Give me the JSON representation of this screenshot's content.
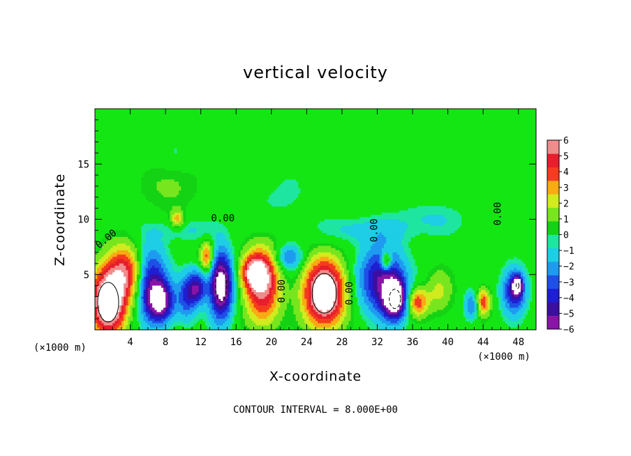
{
  "chart_data": {
    "type": "heatmap",
    "title": "vertical velocity",
    "xlabel": "X-coordinate",
    "ylabel": "Z-coordinate",
    "x_unit": "(×1000 m)",
    "x_unit_right": "(×1000 m)",
    "xlim": [
      0,
      50
    ],
    "ylim": [
      0,
      20
    ],
    "x_ticks": [
      4,
      8,
      12,
      16,
      20,
      24,
      28,
      32,
      36,
      40,
      44,
      48
    ],
    "y_ticks": [
      5,
      10,
      15
    ],
    "contour_note": "CONTOUR INTERVAL = 8.000E+00",
    "contour_labels": [
      "0.00",
      "0.00",
      "0.00",
      "0.00",
      "0.00",
      "0.00"
    ],
    "colorbar": {
      "ticks": [
        "6",
        "5",
        "4",
        "3",
        "2",
        "1",
        "0",
        "−1",
        "−2",
        "−3",
        "−4",
        "−5",
        "−6"
      ],
      "colors": [
        "#8a14a8",
        "#3b0fa0",
        "#1e1ed2",
        "#1e50e6",
        "#1e9bf0",
        "#1ecde6",
        "#1ee6a0",
        "#14d214",
        "#78e61e",
        "#d2eb1e",
        "#faaa14",
        "#f53c1e",
        "#e61e2d",
        "#f08c8c"
      ]
    },
    "background_color": "#14e614",
    "features": [
      {
        "x": 1.5,
        "z": 2.5,
        "v": 9,
        "rx": 2.0,
        "rz": 3.0
      },
      {
        "x": 3.5,
        "z": 5.2,
        "v": 5,
        "rx": 2.0,
        "rz": 2.5
      },
      {
        "x": 6.3,
        "z": 4.3,
        "v": -5,
        "rx": 1.8,
        "rz": 3.2
      },
      {
        "x": 7.5,
        "z": 2.5,
        "v": -6,
        "rx": 1.5,
        "rz": 1.8
      },
      {
        "x": 9.3,
        "z": 10.0,
        "v": 3,
        "rx": 0.7,
        "rz": 0.8
      },
      {
        "x": 10.4,
        "z": 3.0,
        "v": -3.5,
        "rx": 1.0,
        "rz": 2.0
      },
      {
        "x": 12.7,
        "z": 6.6,
        "v": 4.5,
        "rx": 0.8,
        "rz": 1.4
      },
      {
        "x": 11.6,
        "z": 3.8,
        "v": -5,
        "rx": 1.0,
        "rz": 1.5
      },
      {
        "x": 14.3,
        "z": 4.0,
        "v": -8,
        "rx": 1.3,
        "rz": 3.0
      },
      {
        "x": 19.0,
        "z": 4.0,
        "v": 6,
        "rx": 2.0,
        "rz": 3.5
      },
      {
        "x": 18.0,
        "z": 5.2,
        "v": 5,
        "rx": 1.5,
        "rz": 1.5
      },
      {
        "x": 22.0,
        "z": 6.5,
        "v": -3,
        "rx": 1.5,
        "rz": 1.2
      },
      {
        "x": 26.0,
        "z": 3.3,
        "v": 9,
        "rx": 2.3,
        "rz": 3.0
      },
      {
        "x": 32.5,
        "z": 4.5,
        "v": -5.5,
        "rx": 2.5,
        "rz": 3.0
      },
      {
        "x": 34.0,
        "z": 2.8,
        "v": -8,
        "rx": 1.3,
        "rz": 1.8
      },
      {
        "x": 33.0,
        "z": 6.2,
        "v": 4.5,
        "rx": 0.6,
        "rz": 0.9
      },
      {
        "x": 36.5,
        "z": 2.5,
        "v": 4.5,
        "rx": 1.2,
        "rz": 1.3
      },
      {
        "x": 39.0,
        "z": 3.5,
        "v": 2,
        "rx": 1.5,
        "rz": 2.0
      },
      {
        "x": 44.0,
        "z": 2.5,
        "v": 4.5,
        "rx": 0.8,
        "rz": 1.2
      },
      {
        "x": 42.7,
        "z": 2.2,
        "v": -3,
        "rx": 0.8,
        "rz": 1.2
      },
      {
        "x": 47.5,
        "z": 3.5,
        "v": -5,
        "rx": 1.3,
        "rz": 2.0
      },
      {
        "x": 47.9,
        "z": 4.0,
        "v": -7,
        "rx": 0.5,
        "rz": 0.8
      },
      {
        "x": 8.5,
        "z": 13.0,
        "v": 1.2,
        "rx": 3.0,
        "rz": 2.5
      },
      {
        "x": 10.0,
        "z": 9.0,
        "v": -1,
        "rx": 4.0,
        "rz": 1.0
      },
      {
        "x": 30.0,
        "z": 9.0,
        "v": -1.2,
        "rx": 5.0,
        "rz": 1.2
      },
      {
        "x": 38.0,
        "z": 10.0,
        "v": -1,
        "rx": 4.0,
        "rz": 1.5
      },
      {
        "x": 9.0,
        "z": 16.0,
        "v": -0.8,
        "rx": 2.0,
        "rz": 1.5
      },
      {
        "x": 20.0,
        "z": 12.0,
        "v": -0.6,
        "rx": 5.0,
        "rz": 3.0
      }
    ]
  }
}
